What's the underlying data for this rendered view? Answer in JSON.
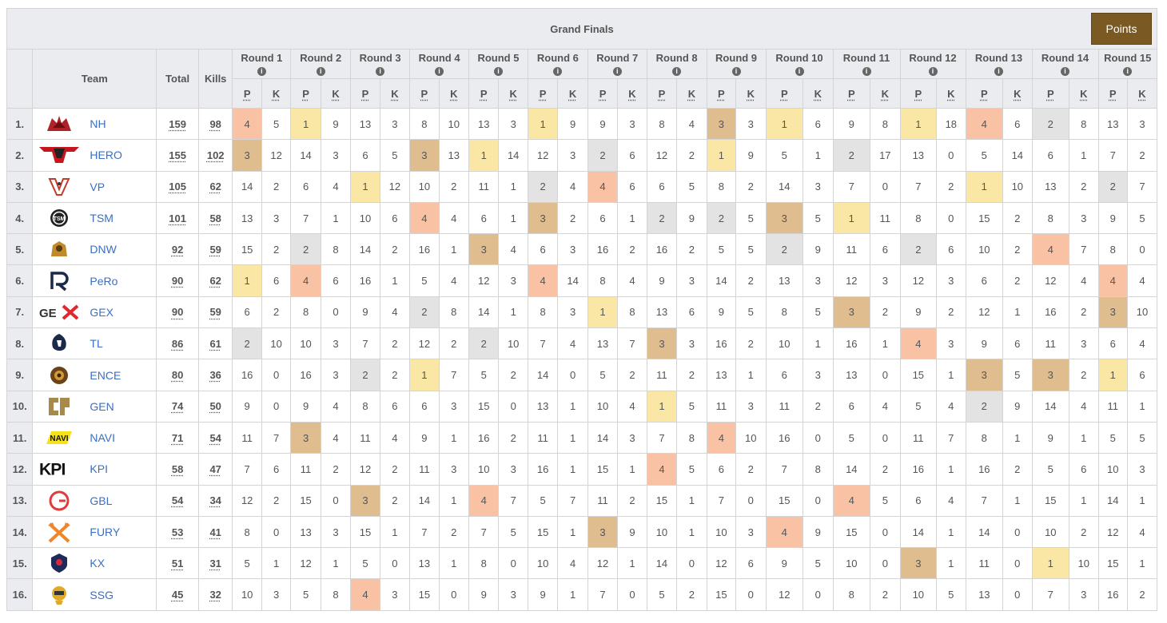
{
  "title": "Grand Finals",
  "points_button": "Points",
  "headers": {
    "team": "Team",
    "total": "Total",
    "kills": "Kills",
    "rounds": [
      "Round 1",
      "Round 2",
      "Round 3",
      "Round 4",
      "Round 5",
      "Round 6",
      "Round 7",
      "Round 8",
      "Round 9",
      "Round 10",
      "Round 11",
      "Round 12",
      "Round 13",
      "Round 14",
      "Round 15"
    ],
    "info_glyph": "i",
    "p": "P",
    "k": "K"
  },
  "colors": {
    "placement_1": "#fbe7a5",
    "placement_2": "#e3e3e3",
    "placement_3": "#dfbd8f",
    "placement_4": "#f9c2a5",
    "team_link": "#3a6fc2",
    "points_button": "#7a5a22"
  },
  "teams": [
    {
      "rank": "1.",
      "logo": "nh-logo",
      "name": "NH",
      "total": "159",
      "kills": "98",
      "rounds": [
        [
          4,
          5
        ],
        [
          1,
          9
        ],
        [
          13,
          3
        ],
        [
          8,
          10
        ],
        [
          13,
          3
        ],
        [
          1,
          9
        ],
        [
          9,
          3
        ],
        [
          8,
          4
        ],
        [
          3,
          3
        ],
        [
          1,
          6
        ],
        [
          9,
          8
        ],
        [
          1,
          18
        ],
        [
          4,
          6
        ],
        [
          2,
          8
        ],
        [
          13,
          3
        ]
      ]
    },
    {
      "rank": "2.",
      "logo": "hero-logo",
      "name": "HERO",
      "total": "155",
      "kills": "102",
      "rounds": [
        [
          3,
          12
        ],
        [
          14,
          3
        ],
        [
          6,
          5
        ],
        [
          3,
          13
        ],
        [
          1,
          14
        ],
        [
          12,
          3
        ],
        [
          2,
          6
        ],
        [
          12,
          2
        ],
        [
          1,
          9
        ],
        [
          5,
          1
        ],
        [
          2,
          17
        ],
        [
          13,
          0
        ],
        [
          5,
          14
        ],
        [
          6,
          1
        ],
        [
          7,
          2
        ]
      ]
    },
    {
      "rank": "3.",
      "logo": "vp-logo",
      "name": "VP",
      "total": "105",
      "kills": "62",
      "rounds": [
        [
          14,
          2
        ],
        [
          6,
          4
        ],
        [
          1,
          12
        ],
        [
          10,
          2
        ],
        [
          11,
          1
        ],
        [
          2,
          4
        ],
        [
          4,
          6
        ],
        [
          6,
          5
        ],
        [
          8,
          2
        ],
        [
          14,
          3
        ],
        [
          7,
          0
        ],
        [
          7,
          2
        ],
        [
          1,
          10
        ],
        [
          13,
          2
        ],
        [
          2,
          7
        ]
      ]
    },
    {
      "rank": "4.",
      "logo": "tsm-logo",
      "name": "TSM",
      "total": "101",
      "kills": "58",
      "rounds": [
        [
          13,
          3
        ],
        [
          7,
          1
        ],
        [
          10,
          6
        ],
        [
          4,
          4
        ],
        [
          6,
          1
        ],
        [
          3,
          2
        ],
        [
          6,
          1
        ],
        [
          2,
          9
        ],
        [
          2,
          5
        ],
        [
          3,
          5
        ],
        [
          1,
          11
        ],
        [
          8,
          0
        ],
        [
          15,
          2
        ],
        [
          8,
          3
        ],
        [
          9,
          5
        ]
      ]
    },
    {
      "rank": "5.",
      "logo": "dnw-logo",
      "name": "DNW",
      "total": "92",
      "kills": "59",
      "rounds": [
        [
          15,
          2
        ],
        [
          2,
          8
        ],
        [
          14,
          2
        ],
        [
          16,
          1
        ],
        [
          3,
          4
        ],
        [
          6,
          3
        ],
        [
          16,
          2
        ],
        [
          16,
          2
        ],
        [
          5,
          5
        ],
        [
          2,
          9
        ],
        [
          11,
          6
        ],
        [
          2,
          6
        ],
        [
          10,
          2
        ],
        [
          4,
          7
        ],
        [
          8,
          0
        ]
      ]
    },
    {
      "rank": "6.",
      "logo": "pero-logo",
      "name": "PeRo",
      "total": "90",
      "kills": "62",
      "rounds": [
        [
          1,
          6
        ],
        [
          4,
          6
        ],
        [
          16,
          1
        ],
        [
          5,
          4
        ],
        [
          12,
          3
        ],
        [
          4,
          14
        ],
        [
          8,
          4
        ],
        [
          9,
          3
        ],
        [
          14,
          2
        ],
        [
          13,
          3
        ],
        [
          12,
          3
        ],
        [
          12,
          3
        ],
        [
          6,
          2
        ],
        [
          12,
          4
        ],
        [
          4,
          4
        ]
      ]
    },
    {
      "rank": "7.",
      "logo": "gex-logo",
      "name": "GEX",
      "total": "90",
      "kills": "59",
      "rounds": [
        [
          6,
          2
        ],
        [
          8,
          0
        ],
        [
          9,
          4
        ],
        [
          2,
          8
        ],
        [
          14,
          1
        ],
        [
          8,
          3
        ],
        [
          1,
          8
        ],
        [
          13,
          6
        ],
        [
          9,
          5
        ],
        [
          8,
          5
        ],
        [
          3,
          2
        ],
        [
          9,
          2
        ],
        [
          12,
          1
        ],
        [
          16,
          2
        ],
        [
          3,
          10
        ]
      ]
    },
    {
      "rank": "8.",
      "logo": "tl-logo",
      "name": "TL",
      "total": "86",
      "kills": "61",
      "rounds": [
        [
          2,
          10
        ],
        [
          10,
          3
        ],
        [
          7,
          2
        ],
        [
          12,
          2
        ],
        [
          2,
          10
        ],
        [
          7,
          4
        ],
        [
          13,
          7
        ],
        [
          3,
          3
        ],
        [
          16,
          2
        ],
        [
          10,
          1
        ],
        [
          16,
          1
        ],
        [
          4,
          3
        ],
        [
          9,
          6
        ],
        [
          11,
          3
        ],
        [
          6,
          4
        ]
      ]
    },
    {
      "rank": "9.",
      "logo": "ence-logo",
      "name": "ENCE",
      "total": "80",
      "kills": "36",
      "rounds": [
        [
          16,
          0
        ],
        [
          16,
          3
        ],
        [
          2,
          2
        ],
        [
          1,
          7
        ],
        [
          5,
          2
        ],
        [
          14,
          0
        ],
        [
          5,
          2
        ],
        [
          11,
          2
        ],
        [
          13,
          1
        ],
        [
          6,
          3
        ],
        [
          13,
          0
        ],
        [
          15,
          1
        ],
        [
          3,
          5
        ],
        [
          3,
          2
        ],
        [
          1,
          6
        ]
      ]
    },
    {
      "rank": "10.",
      "logo": "gen-logo",
      "name": "GEN",
      "total": "74",
      "kills": "50",
      "rounds": [
        [
          9,
          0
        ],
        [
          9,
          4
        ],
        [
          8,
          6
        ],
        [
          6,
          3
        ],
        [
          15,
          0
        ],
        [
          13,
          1
        ],
        [
          10,
          4
        ],
        [
          1,
          5
        ],
        [
          11,
          3
        ],
        [
          11,
          2
        ],
        [
          6,
          4
        ],
        [
          5,
          4
        ],
        [
          2,
          9
        ],
        [
          14,
          4
        ],
        [
          11,
          1
        ]
      ]
    },
    {
      "rank": "11.",
      "logo": "navi-logo",
      "name": "NAVI",
      "total": "71",
      "kills": "54",
      "rounds": [
        [
          11,
          7
        ],
        [
          3,
          4
        ],
        [
          11,
          4
        ],
        [
          9,
          1
        ],
        [
          16,
          2
        ],
        [
          11,
          1
        ],
        [
          14,
          3
        ],
        [
          7,
          8
        ],
        [
          4,
          10
        ],
        [
          16,
          0
        ],
        [
          5,
          0
        ],
        [
          11,
          7
        ],
        [
          8,
          1
        ],
        [
          9,
          1
        ],
        [
          5,
          5
        ]
      ]
    },
    {
      "rank": "12.",
      "logo": "kpi-logo",
      "name": "KPI",
      "total": "58",
      "kills": "47",
      "rounds": [
        [
          7,
          6
        ],
        [
          11,
          2
        ],
        [
          12,
          2
        ],
        [
          11,
          3
        ],
        [
          10,
          3
        ],
        [
          16,
          1
        ],
        [
          15,
          1
        ],
        [
          4,
          5
        ],
        [
          6,
          2
        ],
        [
          7,
          8
        ],
        [
          14,
          2
        ],
        [
          16,
          1
        ],
        [
          16,
          2
        ],
        [
          5,
          6
        ],
        [
          10,
          3
        ]
      ]
    },
    {
      "rank": "13.",
      "logo": "gbl-logo",
      "name": "GBL",
      "total": "54",
      "kills": "34",
      "rounds": [
        [
          12,
          2
        ],
        [
          15,
          0
        ],
        [
          3,
          2
        ],
        [
          14,
          1
        ],
        [
          4,
          7
        ],
        [
          5,
          7
        ],
        [
          11,
          2
        ],
        [
          15,
          1
        ],
        [
          7,
          0
        ],
        [
          15,
          0
        ],
        [
          4,
          5
        ],
        [
          6,
          4
        ],
        [
          7,
          1
        ],
        [
          15,
          1
        ],
        [
          14,
          1
        ]
      ]
    },
    {
      "rank": "14.",
      "logo": "fury-logo",
      "name": "FURY",
      "total": "53",
      "kills": "41",
      "rounds": [
        [
          8,
          0
        ],
        [
          13,
          3
        ],
        [
          15,
          1
        ],
        [
          7,
          2
        ],
        [
          7,
          5
        ],
        [
          15,
          1
        ],
        [
          3,
          9
        ],
        [
          10,
          1
        ],
        [
          10,
          3
        ],
        [
          4,
          9
        ],
        [
          15,
          0
        ],
        [
          14,
          1
        ],
        [
          14,
          0
        ],
        [
          10,
          2
        ],
        [
          12,
          4
        ]
      ]
    },
    {
      "rank": "15.",
      "logo": "kx-logo",
      "name": "KX",
      "total": "51",
      "kills": "31",
      "rounds": [
        [
          5,
          1
        ],
        [
          12,
          1
        ],
        [
          5,
          0
        ],
        [
          13,
          1
        ],
        [
          8,
          0
        ],
        [
          10,
          4
        ],
        [
          12,
          1
        ],
        [
          14,
          0
        ],
        [
          12,
          6
        ],
        [
          9,
          5
        ],
        [
          10,
          0
        ],
        [
          3,
          1
        ],
        [
          11,
          0
        ],
        [
          1,
          10
        ],
        [
          15,
          1
        ]
      ]
    },
    {
      "rank": "16.",
      "logo": "ssg-logo",
      "name": "SSG",
      "total": "45",
      "kills": "32",
      "rounds": [
        [
          10,
          3
        ],
        [
          5,
          8
        ],
        [
          4,
          3
        ],
        [
          15,
          0
        ],
        [
          9,
          3
        ],
        [
          9,
          1
        ],
        [
          7,
          0
        ],
        [
          5,
          2
        ],
        [
          15,
          0
        ],
        [
          12,
          0
        ],
        [
          8,
          2
        ],
        [
          10,
          5
        ],
        [
          13,
          0
        ],
        [
          7,
          3
        ],
        [
          16,
          2
        ]
      ]
    }
  ]
}
